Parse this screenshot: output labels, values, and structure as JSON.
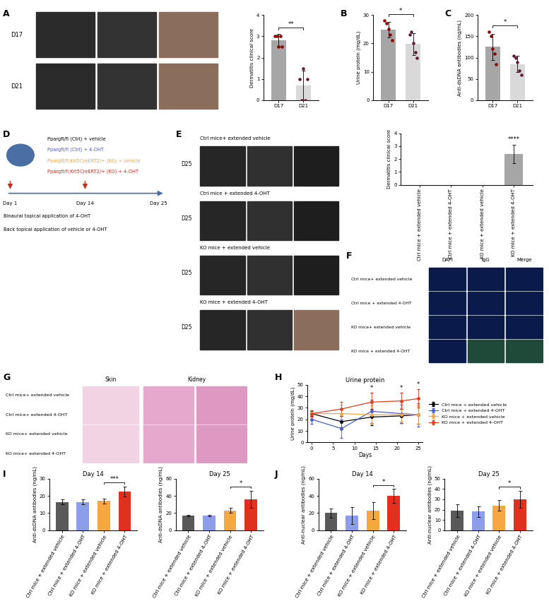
{
  "panel_labels": [
    "A",
    "B",
    "C",
    "D",
    "E",
    "F",
    "G",
    "H",
    "I",
    "J"
  ],
  "chart_data": [
    {
      "type": "bar",
      "y_label": "Dermatitis clinical score",
      "categories": [
        "D17",
        "D21"
      ],
      "values": [
        2.8,
        0.7
      ],
      "error": [
        0.3,
        0.7
      ],
      "points": [
        [
          3,
          3,
          2.5,
          3,
          2.5
        ],
        [
          1,
          0,
          1.5,
          0,
          1
        ]
      ],
      "colors": [
        "#a6a6a6",
        "#d9d9d9"
      ],
      "ylim": [
        0,
        4
      ],
      "yticks": [
        0,
        1,
        2,
        3,
        4
      ],
      "grid": false,
      "significance": [
        {
          "text": "**",
          "from": 0,
          "to": 1
        }
      ]
    },
    {
      "type": "bar",
      "y_label": "Urine protein (mg/dL)",
      "categories": [
        "D17",
        "D21"
      ],
      "values": [
        24.8,
        19.8
      ],
      "error": [
        2.8,
        3.8
      ],
      "points": [
        [
          28,
          27,
          25,
          23,
          21
        ],
        [
          23,
          24,
          20,
          17,
          15
        ]
      ],
      "colors": [
        "#a6a6a6",
        "#d9d9d9"
      ],
      "ylim": [
        0,
        30
      ],
      "yticks": [
        0,
        10,
        20,
        30
      ],
      "grid": false,
      "significance": [
        {
          "text": "*",
          "from": 0,
          "to": 1
        }
      ]
    },
    {
      "type": "bar",
      "y_label": "Anti-dsDNA antibodies (ng/mL)",
      "categories": [
        "D17",
        "D21"
      ],
      "values": [
        125,
        85
      ],
      "error": [
        30,
        19
      ],
      "points": [
        [
          160,
          150,
          120,
          110,
          85
        ],
        [
          105,
          100,
          90,
          70,
          60
        ]
      ],
      "colors": [
        "#a6a6a6",
        "#d9d9d9"
      ],
      "ylim": [
        0,
        200
      ],
      "yticks": [
        0,
        50,
        100,
        150,
        200
      ],
      "grid": false,
      "significance": [
        {
          "text": "*",
          "from": 0,
          "to": 1
        }
      ]
    },
    {
      "type": "bar",
      "y_label": "Dermatitis clinical score",
      "categories": [
        "Ctrl mice + extended vehicle",
        "Ctrl mice + extended 4-OHT",
        "KO mice + extended vehicle",
        "KO mice + extended 4-OHT"
      ],
      "values": [
        0,
        0,
        0,
        2.4
      ],
      "error": [
        0,
        0,
        0,
        0.7
      ],
      "colors": [
        "#d9d9d9",
        "#d9d9d9",
        "#d9d9d9",
        "#a6a6a6"
      ],
      "ylim": [
        0,
        4
      ],
      "yticks": [
        0,
        1,
        2,
        3,
        4
      ],
      "grid": false,
      "significance": [
        {
          "text": "****",
          "from": 3,
          "to": 3
        }
      ]
    },
    {
      "type": "line",
      "title": "Urine protein",
      "x_label": "Days",
      "y_label": "Urine protein (mg/dL)",
      "x": [
        0,
        7,
        14,
        21,
        25
      ],
      "xlim": [
        -1,
        26
      ],
      "xticks": [
        0,
        5,
        10,
        15,
        20,
        25
      ],
      "ylim": [
        0,
        50
      ],
      "yticks": [
        0,
        10,
        20,
        30,
        40,
        50
      ],
      "grid": false,
      "legend": "center left",
      "marker": "circle",
      "series": [
        {
          "name": "Ctrl mice + extended vehicle",
          "color": "#000000",
          "values": [
            25,
            18,
            22,
            23,
            24
          ],
          "error": [
            2,
            5,
            7,
            6,
            8
          ]
        },
        {
          "name": "Ctrl mice + extended 4-OHT",
          "color": "#4b5bd6",
          "values": [
            20,
            12,
            27,
            25,
            24
          ],
          "error": [
            4,
            8,
            10,
            8,
            10
          ]
        },
        {
          "name": "KO mice + extended vehicle",
          "color": "#f5a742",
          "values": [
            25,
            25,
            24,
            24,
            24
          ],
          "error": [
            3,
            8,
            8,
            6,
            8
          ]
        },
        {
          "name": "KO mice + extended 4-OHT",
          "color": "#e0401e",
          "values": [
            25,
            29,
            35,
            36,
            38
          ],
          "error": [
            3,
            6,
            8,
            7,
            8
          ]
        }
      ],
      "significance": [
        {
          "text": "*",
          "x": 14
        },
        {
          "text": "*",
          "x": 21
        },
        {
          "text": "*",
          "x": 25
        }
      ]
    },
    {
      "type": "bar",
      "title": "Day 14",
      "y_label": "Anti-dsDNA antibodies (ng/mL)",
      "categories": [
        "Ctrl mice + extended vehicle",
        "Ctrl mice + extended 4-OHT",
        "KO mice + extended vehicle",
        "KO mice + extended 4-OHT"
      ],
      "values": [
        16.5,
        16.5,
        17,
        22.5
      ],
      "error": [
        1.5,
        1.5,
        1.5,
        3
      ],
      "colors": [
        "#595959",
        "#8c9eea",
        "#f5a742",
        "#e0301e"
      ],
      "ylim": [
        0,
        30
      ],
      "yticks": [
        0,
        10,
        20,
        30
      ],
      "grid": false,
      "significance": [
        {
          "text": "***",
          "from": 2,
          "to": 3
        }
      ]
    },
    {
      "type": "bar",
      "title": "Day 25",
      "y_label": "Anti-dsDNA antibodies (ng/mL)",
      "categories": [
        "Ctrl mice + extended vehicle",
        "Ctrl mice + extended 4-OHT",
        "KO mice + extended vehicle",
        "KO mice + extended 4-OHT"
      ],
      "values": [
        17,
        17,
        23,
        36
      ],
      "error": [
        1,
        1,
        3,
        10
      ],
      "colors": [
        "#595959",
        "#8c9eea",
        "#f5a742",
        "#e0301e"
      ],
      "ylim": [
        0,
        60
      ],
      "yticks": [
        0,
        20,
        40,
        60
      ],
      "grid": false,
      "significance": [
        {
          "text": "*",
          "from": 2,
          "to": 3
        }
      ]
    },
    {
      "type": "bar",
      "title": "Day 14",
      "y_label": "Anti-nuclear antibodies (ng/mL)",
      "categories": [
        "Ctrl mice + extended vehicle",
        "Ctrl mice + extended 4-OHT",
        "KO mice + extended vehicle",
        "KO mice + extended 4-OHT"
      ],
      "values": [
        20,
        17,
        23,
        40
      ],
      "error": [
        5,
        10,
        10,
        8
      ],
      "colors": [
        "#595959",
        "#8c9eea",
        "#f5a742",
        "#e0301e"
      ],
      "ylim": [
        0,
        60
      ],
      "yticks": [
        0,
        20,
        40,
        60
      ],
      "grid": false,
      "significance": [
        {
          "text": "*",
          "from": 2,
          "to": 3
        }
      ]
    },
    {
      "type": "bar",
      "title": "Day 25",
      "y_label": "Anti-nuclear antibodies (ng/mL)",
      "categories": [
        "Ctrl mice + extended vehicle",
        "Ctrl mice + extended 4-OHT",
        "KO mice + extended vehicle",
        "KO mice + extended 4-OHT"
      ],
      "values": [
        19,
        18,
        24,
        30
      ],
      "error": [
        6,
        5,
        5,
        8
      ],
      "colors": [
        "#595959",
        "#8c9eea",
        "#f5a742",
        "#e0301e"
      ],
      "ylim": [
        0,
        50
      ],
      "yticks": [
        0,
        10,
        20,
        30,
        40,
        50
      ],
      "grid": false,
      "significance": [
        {
          "text": "*",
          "from": 2,
          "to": 3
        }
      ]
    }
  ],
  "image_panels": {
    "A": {
      "rows": [
        "D17",
        "D21"
      ]
    },
    "D": {
      "groups": [
        "Ppargfl/fl (Ctrl) + vehicle",
        "Ppargfl/fl (Ctrl) + 4-OHT",
        "Ppargfl/fl;Krt5CreERT2/+ (KO) + vehicle",
        "Ppargfl/fl;Krt5CreERT2/+ (KO) + 4-OHT"
      ],
      "colors": [
        "#000000",
        "#4b5bd6",
        "#f5a742",
        "#c0301e"
      ],
      "events": [
        {
          "day": "Day 1",
          "text": "Binaural topical application of 4-OHT"
        },
        {
          "day": "Day 14",
          "text": "Back topical application of vehicle or 4-OHT"
        },
        {
          "day": "Day 25"
        }
      ]
    },
    "E": {
      "day": "D25",
      "rows": [
        "Ctrl mice+ extended vehicle",
        "Ctrl mice + extended 4-OHT",
        "KO mice + extended vehicle",
        "KO mice + extended 4-OHT"
      ]
    },
    "F": {
      "columns": [
        "DAPI",
        "IgG",
        "Merge"
      ],
      "rows": [
        "Ctrl mice+ extended vehicle",
        "Ctrl mice + extended 4-OHT",
        "KO mice+ extended vehicle",
        "KO mice + extended 4-OHT"
      ]
    },
    "G": {
      "columns": [
        "Skin",
        "Kidney"
      ],
      "rows": [
        "Ctrl mice+ extended vehicle",
        "Ctrl mice+ extended 4-OHT",
        "KO mice+ extended vehicle",
        "KO mice+ extended 4-OHT"
      ]
    }
  }
}
